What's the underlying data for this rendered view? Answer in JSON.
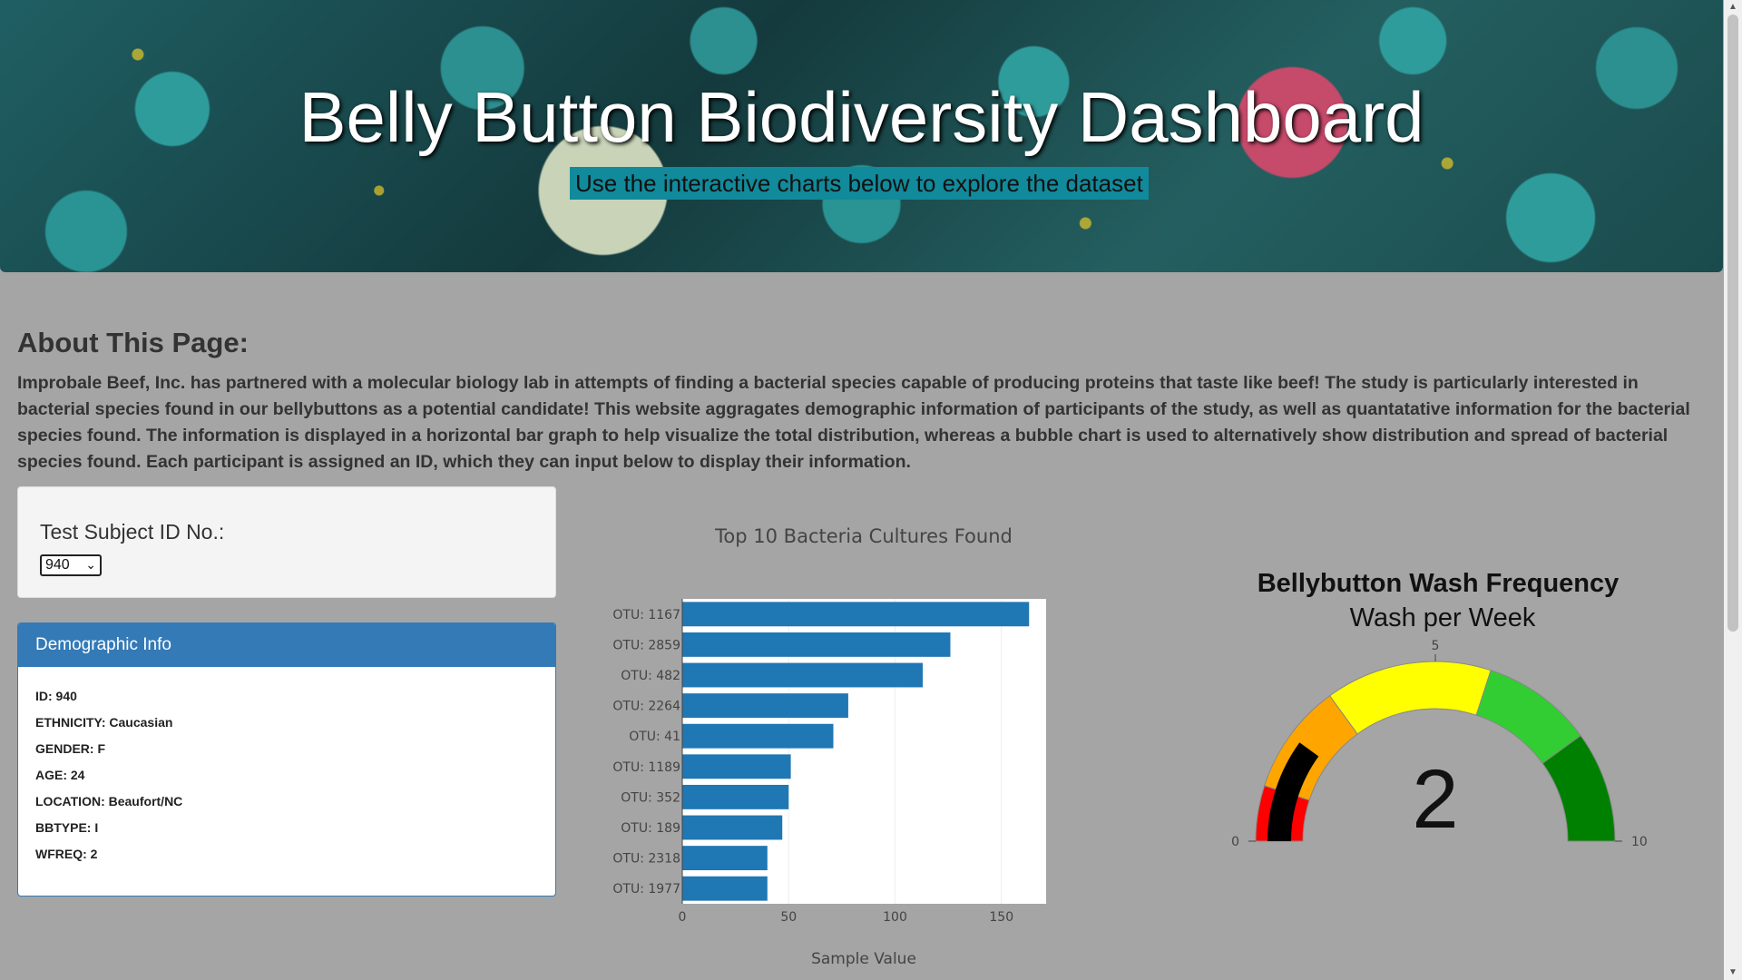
{
  "header": {
    "title": "Belly Button Biodiversity Dashboard",
    "subtitle": "Use the interactive charts below to explore the dataset"
  },
  "about": {
    "title": "About This Page:",
    "text": "Improbale Beef, Inc. has partnered with a molecular biology lab in attempts of finding a bacterial species capable of producing proteins that taste like beef! The study is particularly interested in bacterial species found in our bellybuttons as a potential candidate! This website aggragates demographic information of participants of the study, as well as quantatative information for the bacterial species found. The information is displayed in a horizontal bar graph to help visualize the total distribution, whereas a bubble chart is used to alternatively show distribution and spread of bacterial species found. Each participant is assigned an ID, which they can input below to display their information."
  },
  "selector": {
    "label": "Test Subject ID No.:",
    "selected": "940"
  },
  "demographics": {
    "title": "Demographic Info",
    "rows": [
      "ID: 940",
      "ETHNICITY: Caucasian",
      "GENDER: F",
      "AGE: 24",
      "LOCATION: Beaufort/NC",
      "BBTYPE: I",
      "WFREQ: 2"
    ]
  },
  "colors": {
    "bar": "#1f77b4",
    "panel_header": "#337ab7",
    "subtitle_bg": "#118a9b"
  },
  "chart_data": [
    {
      "type": "bar",
      "orientation": "horizontal",
      "title": "Top 10 Bacteria Cultures Found",
      "xlabel": "Sample Value",
      "ylabel": "",
      "categories": [
        "OTU: 1167",
        "OTU: 2859",
        "OTU: 482",
        "OTU: 2264",
        "OTU: 41",
        "OTU: 1189",
        "OTU: 352",
        "OTU: 189",
        "OTU: 2318",
        "OTU: 1977"
      ],
      "values": [
        163,
        126,
        113,
        78,
        71,
        51,
        50,
        47,
        40,
        40
      ],
      "xlim": [
        0,
        171
      ],
      "xticks": [
        0,
        50,
        100,
        150
      ],
      "grid": true
    },
    {
      "type": "gauge",
      "title": "Bellybutton Wash Frequency",
      "subtitle": "Wash per Week",
      "value": 2,
      "range": [
        0,
        10
      ],
      "ticks": [
        0,
        5,
        10
      ],
      "steps": [
        {
          "range": [
            0,
            1
          ],
          "color": "#ff0000"
        },
        {
          "range": [
            1,
            3
          ],
          "color": "#ffa500"
        },
        {
          "range": [
            3,
            6
          ],
          "color": "#ffff00"
        },
        {
          "range": [
            6,
            8
          ],
          "color": "#32cd32"
        },
        {
          "range": [
            8,
            10
          ],
          "color": "#008000"
        }
      ],
      "bar_color": "#000000"
    }
  ]
}
